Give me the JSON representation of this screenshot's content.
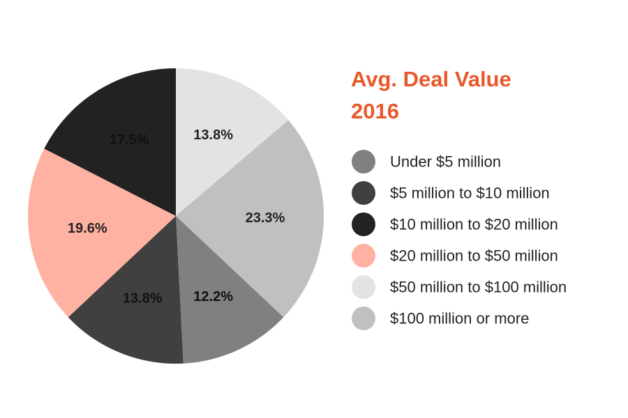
{
  "chart_data": {
    "type": "pie",
    "title": [
      "Avg. Deal Value",
      "2016"
    ],
    "legend_position": "right",
    "slices": [
      {
        "label": "$50 million to $100 million",
        "value": 13.8,
        "value_label": "13.8%",
        "color": "#e3e3e3",
        "text_color": "#222222"
      },
      {
        "label": "$100 million or more",
        "value": 23.3,
        "value_label": "23.3%",
        "color": "#c0c0c0",
        "text_color": "#222222"
      },
      {
        "label": "Under $5 million",
        "value": 12.2,
        "value_label": "12.2%",
        "color": "#808080",
        "text_color": "#111111"
      },
      {
        "label": "$5 million to $10 million",
        "value": 13.8,
        "value_label": "13.8%",
        "color": "#404040",
        "text_color": "#111111"
      },
      {
        "label": "$20 million to $50 million",
        "value": 19.6,
        "value_label": "19.6%",
        "color": "#ffb2a2",
        "text_color": "#222222"
      },
      {
        "label": "$10 million to $20 million",
        "value": 17.5,
        "value_label": "17.5%",
        "color": "#222222",
        "text_color": "#111111"
      }
    ],
    "legend": [
      {
        "label": "Under $5 million",
        "color": "#808080"
      },
      {
        "label": "$5 million to $10 million",
        "color": "#404040"
      },
      {
        "label": "$10 million to $20 million",
        "color": "#222222"
      },
      {
        "label": "$20 million to $50 million",
        "color": "#ffb2a2"
      },
      {
        "label": "$50 million to $100 million",
        "color": "#e3e3e3"
      },
      {
        "label": "$100 million or more",
        "color": "#c0c0c0"
      }
    ],
    "title_color": "#e8582a",
    "text_color": "#222222"
  }
}
